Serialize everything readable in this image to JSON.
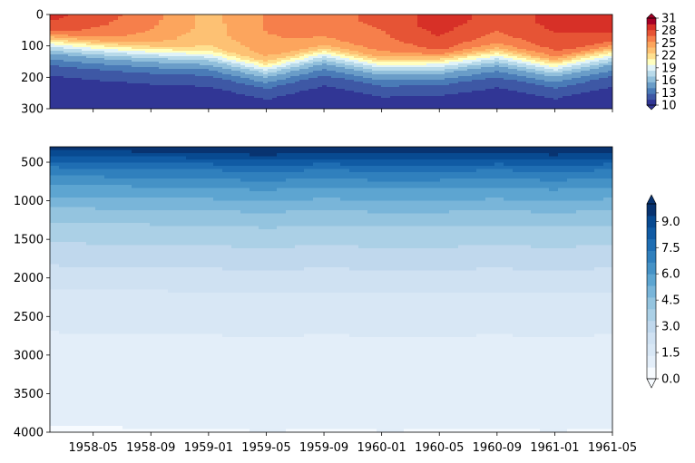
{
  "chart_data": [
    {
      "type": "heatmap",
      "title": "",
      "xlabel": "",
      "ylabel": "",
      "x_ticks": [
        "1958-05",
        "1958-09",
        "1959-01",
        "1959-05",
        "1959-09",
        "1960-01",
        "1960-05",
        "1960-09",
        "1961-01",
        "1961-05"
      ],
      "x_range": [
        "1958-02",
        "1961-05"
      ],
      "y_ticks": [
        0,
        100,
        200,
        300
      ],
      "ylim": [
        300,
        0
      ],
      "y_inverted": true,
      "colormap": "RdYlBu_r",
      "colorbar": {
        "ticks": [
          10,
          13,
          16,
          19,
          22,
          25,
          28,
          31
        ],
        "range": [
          10,
          31
        ],
        "extend": "both",
        "level_colors": [
          "#313695",
          "#3e58a5",
          "#4a7bb7",
          "#6a9dc8",
          "#91bfdb",
          "#b8daea",
          "#e0f3f8",
          "#ffffbf",
          "#fee090",
          "#fdc173",
          "#fca55d",
          "#f67f4b",
          "#e65435",
          "#d73027",
          "#a50026"
        ]
      },
      "depth_profile": {
        "depths": [
          0,
          50,
          80,
          100,
          120,
          140,
          160,
          180,
          200,
          240,
          300
        ],
        "values_warm_month": [
          29,
          28,
          27,
          25,
          21,
          18,
          15.5,
          14,
          12.5,
          11,
          10.5
        ],
        "values_cool_month": [
          23,
          23,
          22.5,
          22,
          20,
          17,
          15,
          13.5,
          12,
          11,
          10.5
        ]
      },
      "series": [
        {
          "month": "1958-02",
          "surface_temp": 29.5,
          "mixed_layer_depth": 80
        },
        {
          "month": "1958-05",
          "surface_temp": 28,
          "mixed_layer_depth": 95
        },
        {
          "month": "1958-09",
          "surface_temp": 26,
          "mixed_layer_depth": 110
        },
        {
          "month": "1959-01",
          "surface_temp": 23.5,
          "mixed_layer_depth": 120
        },
        {
          "month": "1959-05",
          "surface_temp": 25.5,
          "mixed_layer_depth": 160
        },
        {
          "month": "1959-09",
          "surface_temp": 26.5,
          "mixed_layer_depth": 115
        },
        {
          "month": "1960-01",
          "surface_temp": 27,
          "mixed_layer_depth": 150
        },
        {
          "month": "1960-05",
          "surface_temp": 29,
          "mixed_layer_depth": 145
        },
        {
          "month": "1960-09",
          "surface_temp": 27.5,
          "mixed_layer_depth": 120
        },
        {
          "month": "1961-01",
          "surface_temp": 28.5,
          "mixed_layer_depth": 155
        },
        {
          "month": "1961-05",
          "surface_temp": 29.5,
          "mixed_layer_depth": 115
        }
      ]
    },
    {
      "type": "heatmap",
      "title": "",
      "xlabel": "",
      "ylabel": "",
      "x_ticks": [
        "1958-05",
        "1958-09",
        "1959-01",
        "1959-05",
        "1959-09",
        "1960-01",
        "1960-05",
        "1960-09",
        "1961-01",
        "1961-05"
      ],
      "x_range": [
        "1958-02",
        "1961-05"
      ],
      "y_ticks": [
        500,
        1000,
        1500,
        2000,
        2500,
        3000,
        3500,
        4000
      ],
      "ylim": [
        4000,
        300
      ],
      "y_inverted": true,
      "colormap": "Blues",
      "colorbar": {
        "ticks": [
          "0.0",
          "1.5",
          "3.0",
          "4.5",
          "6.0",
          "7.5",
          "9.0"
        ],
        "range": [
          0,
          10
        ],
        "extend": "both",
        "level_colors": [
          "#f7fbff",
          "#e3eef9",
          "#d8e7f5",
          "#cfe1f2",
          "#c0d8ed",
          "#abd0e6",
          "#94c4df",
          "#79b5d9",
          "#5da5d1",
          "#4592c6",
          "#3080bd",
          "#1f6eb3",
          "#105ba4",
          "#084a91",
          "#083370"
        ]
      },
      "depth_profile": {
        "depths": [
          300,
          450,
          600,
          800,
          1000,
          1200,
          1500,
          1900,
          2400,
          3000,
          3850,
          4000
        ],
        "values": [
          10,
          8.6,
          7.3,
          6.1,
          5.2,
          4.3,
          3.5,
          2.6,
          1.5,
          1.2,
          1.0,
          0.5
        ]
      }
    }
  ]
}
